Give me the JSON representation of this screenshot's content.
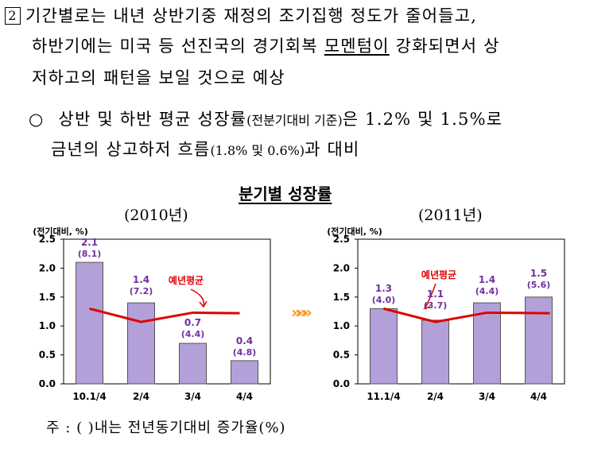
{
  "para1": {
    "number": "2",
    "lines": [
      "기간별로는 내년 상반기중 재정의 조기집행 정도가 줄어들고,",
      "하반기에는 미국 등 선진국의 경기회복 ",
      "모멘텀이",
      " 강화되면서 상",
      "저하고의 패턴을 보일 것으로 예상"
    ]
  },
  "para2": {
    "bullet": "○",
    "l1a": "상반 및 하반 평균 성장률",
    "l1b": "(전분기대비 기준)",
    "l1c": "은 1.2% 및 1.5%로",
    "l2a": "금년의 상고하저 흐름",
    "l2b": "(1.8% 및 0.6%)",
    "l2c": "과 대비"
  },
  "figure_title": "분기별 성장률",
  "footnote": "주 : ( )내는 전년동기대비 증가율(%)",
  "arrows": "»»»",
  "chart_data": [
    {
      "type": "bar",
      "title": "(2010년)",
      "ylabel": "(전기대비, %)",
      "ylim": [
        0,
        2.5
      ],
      "yticks": [
        "0.0",
        "0.5",
        "1.0",
        "1.5",
        "2.0",
        "2.5"
      ],
      "categories": [
        "10.1/4",
        "2/4",
        "3/4",
        "4/4"
      ],
      "values": [
        2.1,
        1.4,
        0.7,
        0.4
      ],
      "value_labels": [
        "2.1",
        "1.4",
        "0.7",
        "0.4"
      ],
      "yoy_labels": [
        "(8.1)",
        "(7.2)",
        "(4.4)",
        "(4.8)"
      ],
      "line": {
        "name": "예년평균",
        "values": [
          1.3,
          1.07,
          1.23,
          1.22
        ]
      },
      "bar_color": "#b4a0d8",
      "line_color": "#e00000",
      "label_color": "#7030a0"
    },
    {
      "type": "bar",
      "title": "(2011년)",
      "ylabel": "(전기대비, %)",
      "ylim": [
        0,
        2.5
      ],
      "yticks": [
        "0.0",
        "0.5",
        "1.0",
        "1.5",
        "2.0",
        "2.5"
      ],
      "categories": [
        "11.1/4",
        "2/4",
        "3/4",
        "4/4"
      ],
      "values": [
        1.3,
        1.1,
        1.4,
        1.5
      ],
      "value_labels": [
        "1.3",
        "1.1",
        "1.4",
        "1.5"
      ],
      "yoy_labels": [
        "(4.0)",
        "(3.7)",
        "(4.4)",
        "(5.6)"
      ],
      "line": {
        "name": "예년평균",
        "values": [
          1.3,
          1.07,
          1.23,
          1.22
        ]
      },
      "bar_color": "#b4a0d8",
      "line_color": "#e00000",
      "label_color": "#7030a0"
    }
  ]
}
